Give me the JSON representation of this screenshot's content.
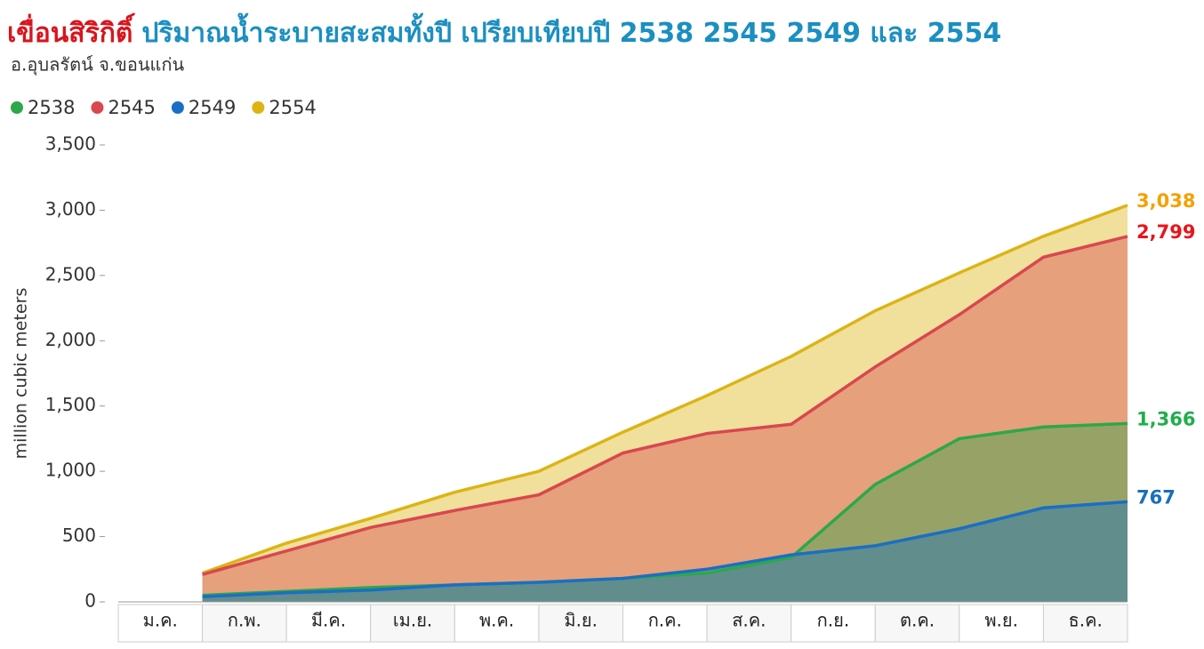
{
  "chart_data": {
    "type": "area-line",
    "title": "เขื่อนสิริกิติ์",
    "title_rest": "ปริมาณน้ำระบายสะสมทั้งปี เปรียบเทียบปี 2538 2545 2549 และ 2554",
    "subtitle": "อ.อุบลรัตน์ จ.ขอนแก่น",
    "y_label": "million cubic meters",
    "categories": [
      "ม.ค.",
      "ก.พ.",
      "มี.ค.",
      "เม.ย.",
      "พ.ค.",
      "มิ.ย.",
      "ก.ค.",
      "ส.ค.",
      "ก.ย.",
      "ต.ค.",
      "พ.ย.",
      "ธ.ค."
    ],
    "series": [
      {
        "name": "2538",
        "color": "#2ca84a",
        "label_color": "#1fae4b",
        "values": [
          50,
          80,
          110,
          130,
          150,
          180,
          220,
          340,
          900,
          1250,
          1340,
          1366
        ],
        "value_labels": [
          null,
          null,
          null,
          null,
          null,
          null,
          null,
          null,
          null,
          null,
          null,
          "1,366"
        ]
      },
      {
        "name": "2545",
        "color": "#d9474f",
        "label_color": "#e8151b",
        "values": [
          210,
          390,
          570,
          700,
          820,
          1140,
          1290,
          1360,
          1800,
          2200,
          2640,
          2799
        ],
        "value_labels": [
          null,
          null,
          null,
          null,
          null,
          null,
          null,
          null,
          null,
          null,
          null,
          "2,799"
        ]
      },
      {
        "name": "2549",
        "color": "#1a6fc4",
        "label_color": "#1a6fb8",
        "values": [
          40,
          70,
          90,
          130,
          150,
          180,
          250,
          360,
          430,
          560,
          720,
          767
        ],
        "value_labels": [
          null,
          null,
          null,
          null,
          null,
          null,
          null,
          null,
          null,
          null,
          null,
          "767"
        ]
      },
      {
        "name": "2554",
        "color": "#dcb414",
        "label_color": "#f5a000",
        "values": [
          220,
          450,
          640,
          840,
          1000,
          1300,
          1580,
          1880,
          2230,
          2520,
          2800,
          3038
        ],
        "value_labels": [
          null,
          null,
          null,
          null,
          null,
          null,
          null,
          null,
          null,
          null,
          null,
          "3,038"
        ]
      }
    ],
    "ylim": [
      0,
      3500
    ],
    "yticks": [
      0,
      500,
      {
        "value": 1000,
        "label": "1,000"
      },
      {
        "value": 1500,
        "label": "1,500"
      },
      {
        "value": 2000,
        "label": "2,000"
      },
      {
        "value": 2500,
        "label": "2,500"
      },
      {
        "value": 3000,
        "label": "3,000"
      },
      {
        "value": 3500,
        "label": "3,500"
      }
    ],
    "legend": "top-left",
    "grid": false
  }
}
